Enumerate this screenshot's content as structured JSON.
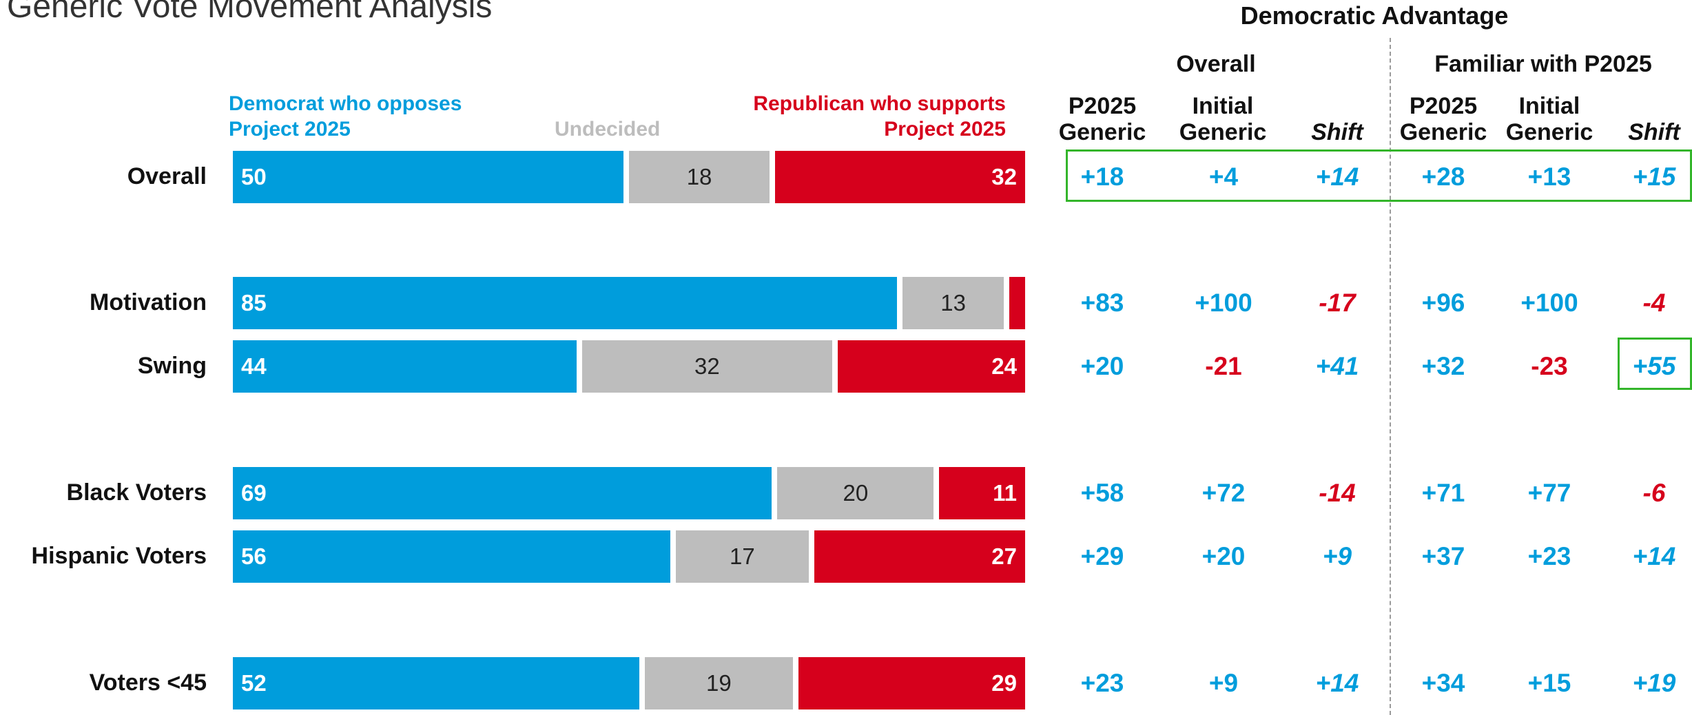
{
  "title": "Generic Vote Movement Analysis",
  "colors": {
    "dem": "#009ddc",
    "und": "#bdbdbd",
    "rep": "#d6001c",
    "box": "#33b52a"
  },
  "table": {
    "title": "Democratic Advantage",
    "group_overall": "Overall",
    "group_familiar": "Familiar with P2025",
    "col1": "P2025\nGeneric",
    "col2": "Initial\nGeneric",
    "col3": "Shift",
    "col4": "P2025\nGeneric",
    "col5": "Initial\nGeneric",
    "col6": "Shift"
  },
  "legend": {
    "dem": "Democrat who opposes\nProject 2025",
    "und": "Undecided",
    "rep": "Republican who supports\nProject 2025"
  },
  "chart_data": {
    "type": "bar",
    "stacked": true,
    "orientation": "horizontal",
    "xlim": [
      0,
      100
    ],
    "categories": [
      "Overall",
      "Motivation",
      "Swing",
      "Black Voters",
      "Hispanic Voters",
      "Voters <45"
    ],
    "series": [
      {
        "name": "Democrat who opposes Project 2025",
        "values": [
          50,
          85,
          44,
          69,
          56,
          52
        ],
        "labels": [
          "50",
          "85",
          "44",
          "69",
          "56",
          "52"
        ]
      },
      {
        "name": "Undecided",
        "values": [
          18,
          13,
          32,
          20,
          17,
          19
        ],
        "labels": [
          "18",
          "13",
          "32",
          "20",
          "17",
          "19"
        ]
      },
      {
        "name": "Republican who supports Project 2025",
        "values": [
          32,
          2,
          24,
          11,
          27,
          29
        ],
        "labels": [
          "32",
          "",
          "24",
          "11",
          "27",
          "29"
        ]
      }
    ],
    "advantage": [
      [
        "+18",
        "+4",
        "+14",
        "+28",
        "+13",
        "+15"
      ],
      [
        "+83",
        "+100",
        "-17",
        "+96",
        "+100",
        "-4"
      ],
      [
        "+20",
        "-21",
        "+41",
        "+32",
        "-23",
        "+55"
      ],
      [
        "+58",
        "+72",
        "-14",
        "+71",
        "+77",
        "-6"
      ],
      [
        "+29",
        "+20",
        "+9",
        "+37",
        "+23",
        "+14"
      ],
      [
        "+23",
        "+9",
        "+14",
        "+34",
        "+15",
        "+19"
      ]
    ]
  }
}
